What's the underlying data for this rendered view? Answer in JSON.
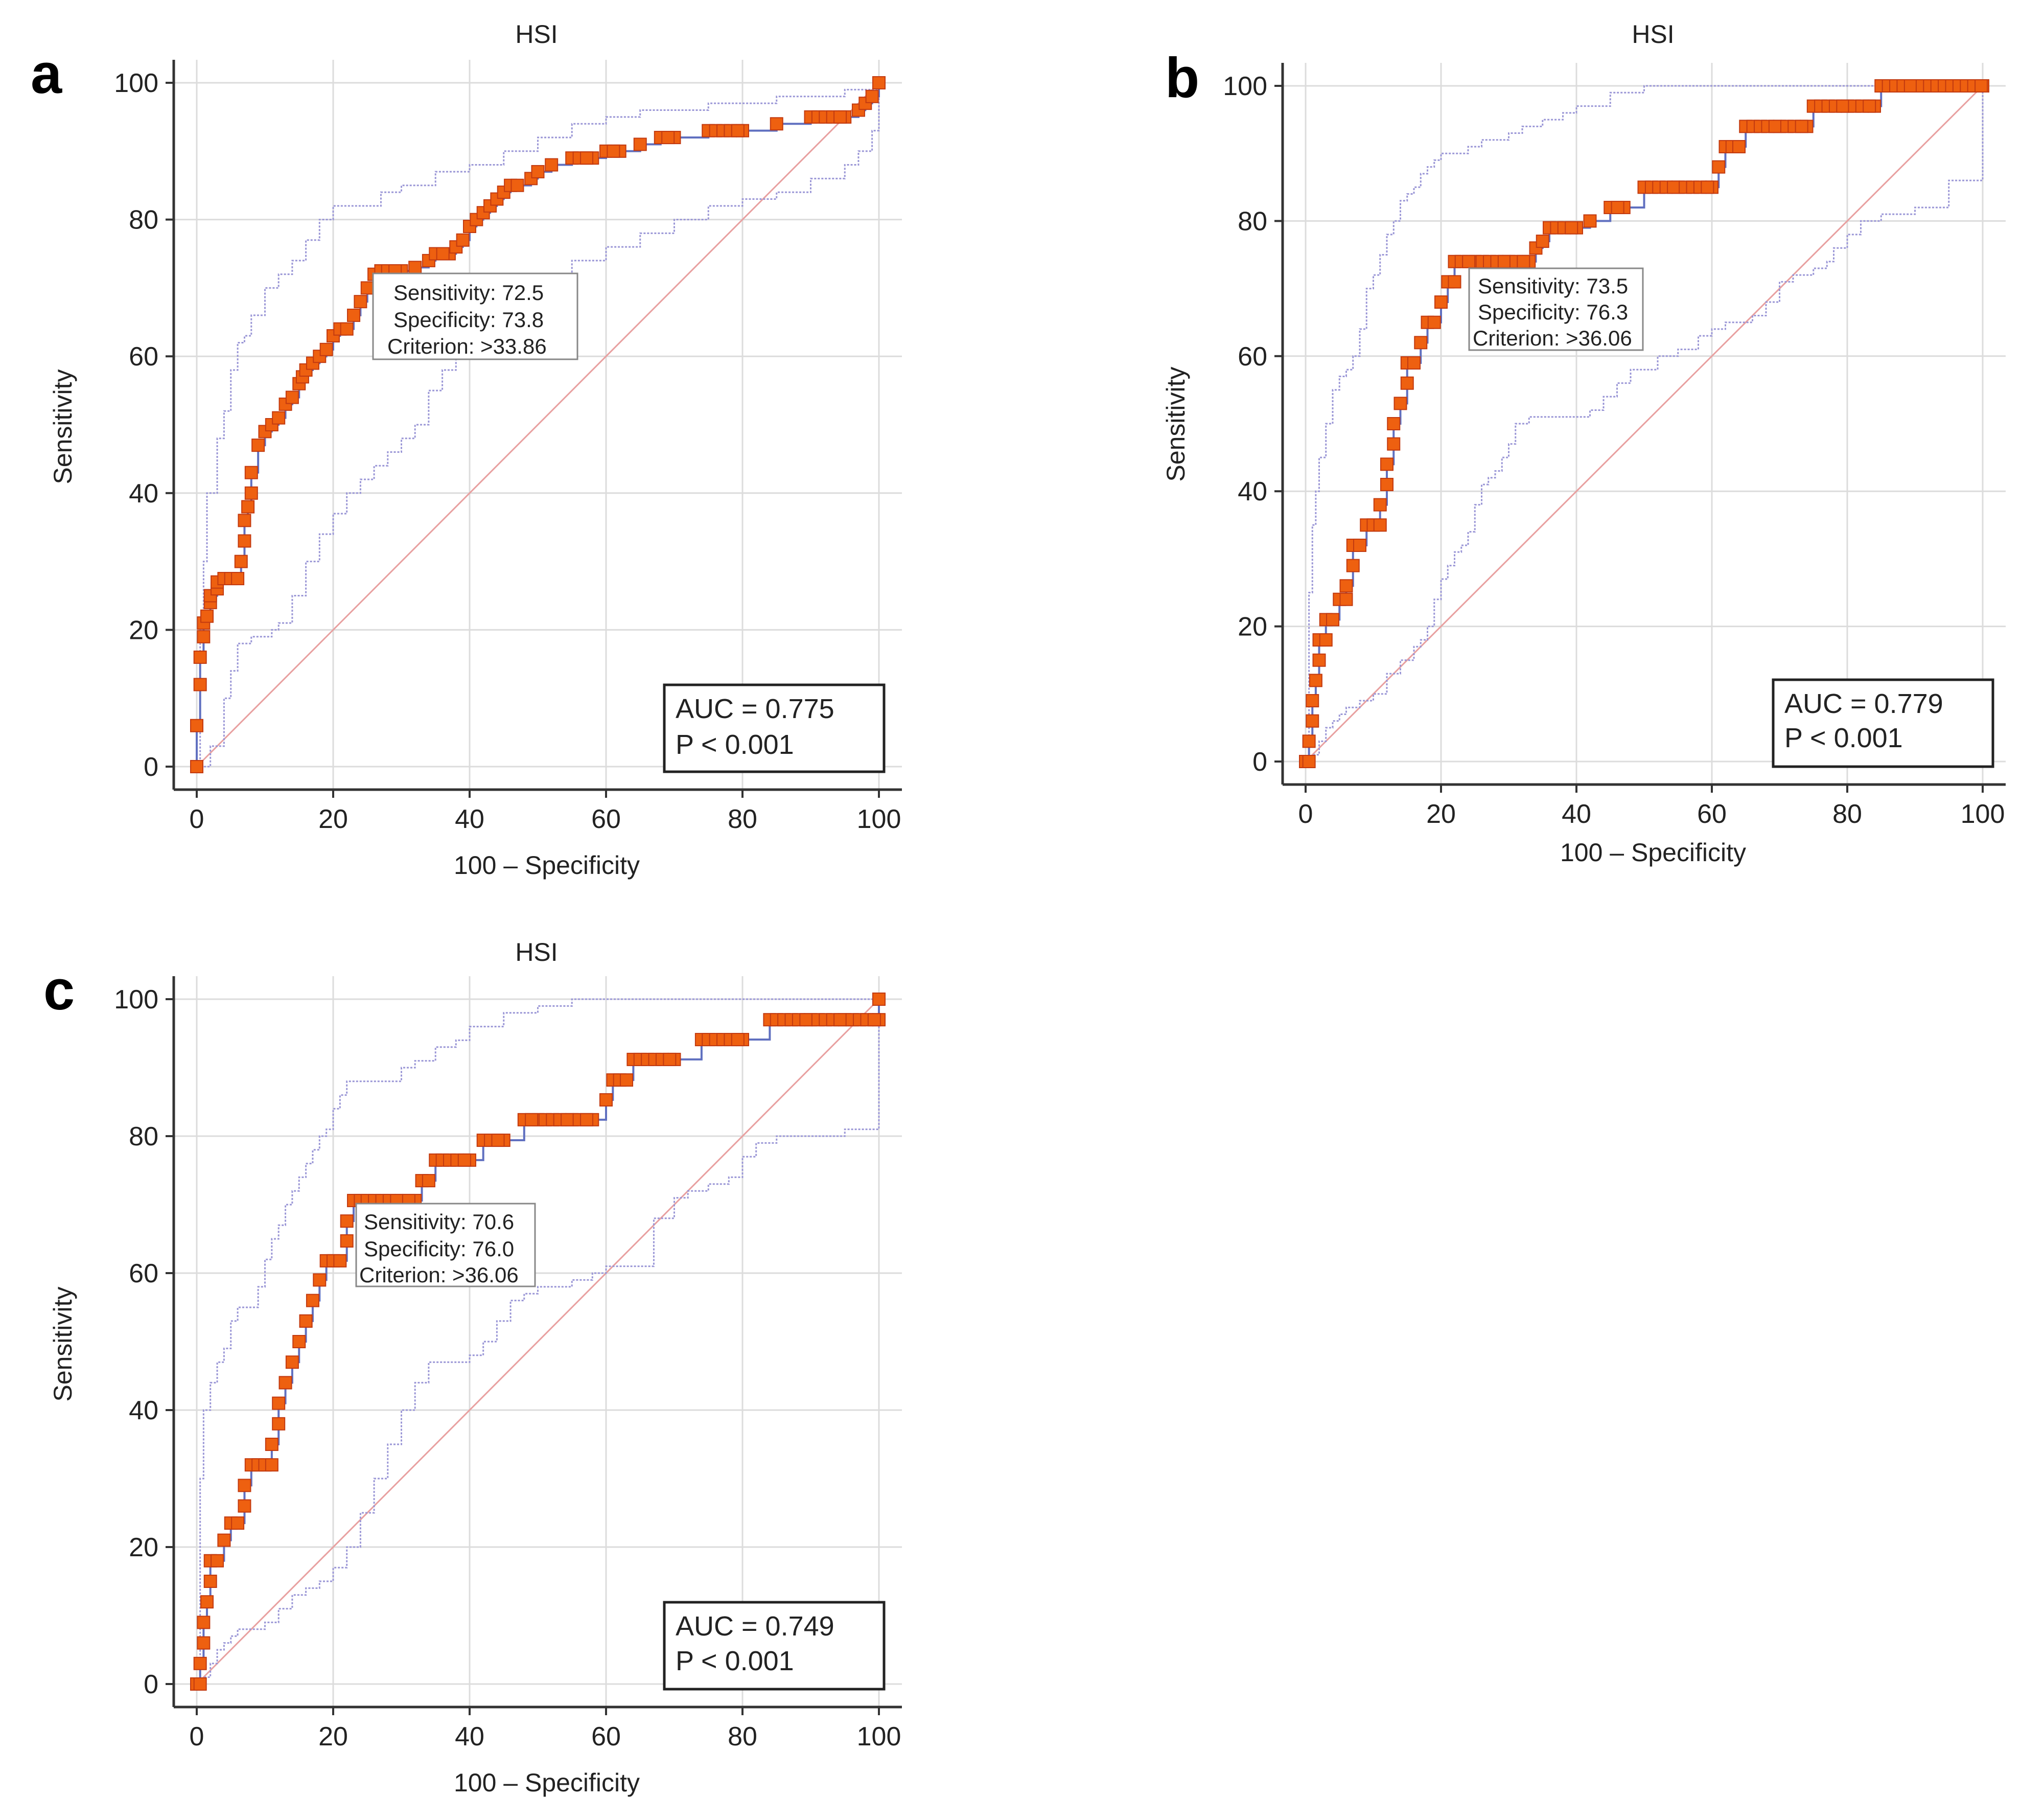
{
  "chart_data": [
    {
      "type": "line",
      "panel_label": "a",
      "title": "HSI",
      "xlabel": "100 – Specificity",
      "ylabel": "Sensitivity",
      "xlim": [
        0,
        100
      ],
      "ylim": [
        0,
        100
      ],
      "xticks": [
        "0",
        "20",
        "40",
        "60",
        "80",
        "100"
      ],
      "yticks": [
        "0",
        "20",
        "40",
        "60",
        "80",
        "100"
      ],
      "grid": true,
      "reference_line": {
        "name": "reference",
        "x": [
          0,
          100
        ],
        "y": [
          0,
          100
        ],
        "color": "#e8a0a0"
      },
      "series": [
        {
          "name": "ROC curve",
          "color": "#ee6010",
          "x": [
            0,
            0,
            0.5,
            0.5,
            1,
            1,
            1.5,
            2,
            2,
            3,
            3,
            4,
            5,
            6,
            6.5,
            7,
            7,
            7.5,
            8,
            8,
            9,
            10,
            11,
            12,
            13,
            14,
            15,
            15.5,
            16,
            17,
            18,
            19,
            20,
            21,
            22,
            23,
            24,
            25,
            26,
            27,
            28,
            30,
            32,
            34,
            35,
            37,
            38,
            39,
            40,
            41,
            42,
            43,
            44,
            45,
            46,
            47,
            49,
            50,
            52,
            55,
            58,
            60,
            62,
            65,
            68,
            70,
            75,
            80,
            85,
            90,
            95,
            97,
            98,
            99,
            100
          ],
          "y": [
            0,
            6,
            12,
            16,
            19,
            21,
            22,
            24,
            25,
            26,
            27,
            27.5,
            27.5,
            27.5,
            30,
            33,
            36,
            38,
            40,
            43,
            47,
            49,
            50,
            51,
            53,
            54,
            56,
            57,
            58,
            59,
            60,
            61,
            63,
            64,
            64,
            66,
            68,
            70,
            72,
            72.5,
            72.5,
            72.5,
            73,
            74,
            75,
            75,
            76,
            77,
            79,
            80,
            81,
            82,
            83,
            84,
            85,
            85,
            86,
            87,
            88,
            89,
            89,
            90,
            90,
            91,
            92,
            92,
            93,
            93,
            94,
            95,
            95,
            96,
            97,
            98,
            100
          ]
        },
        {
          "name": "CI upper",
          "color": "#9a96d6",
          "x": [
            0,
            0.5,
            1,
            1.5,
            2,
            3,
            4,
            5,
            6,
            7,
            8,
            10,
            12,
            14,
            16,
            18,
            20,
            22,
            25,
            27,
            30,
            35,
            40,
            45,
            50,
            55,
            60,
            65,
            70,
            75,
            80,
            85,
            90,
            95,
            100
          ],
          "y": [
            0,
            20,
            30,
            40,
            40,
            48,
            52,
            58,
            62,
            63,
            66,
            70,
            72,
            74,
            77,
            80,
            82,
            82,
            82,
            84,
            85,
            87,
            88,
            90,
            92,
            94,
            95,
            96,
            96,
            97,
            97,
            98,
            98,
            99,
            100
          ]
        },
        {
          "name": "CI lower",
          "color": "#9a96d6",
          "x": [
            0,
            2,
            4,
            5,
            6,
            8,
            10,
            11,
            12,
            14,
            16,
            18,
            20,
            22,
            24,
            26,
            28,
            30,
            32,
            34,
            36,
            38,
            40,
            42,
            45,
            48,
            50,
            55,
            60,
            65,
            70,
            75,
            80,
            85,
            90,
            95,
            97,
            99,
            100
          ],
          "y": [
            0,
            3,
            10,
            14,
            18,
            19,
            19,
            20,
            21,
            25,
            30,
            34,
            37,
            40,
            42,
            44,
            46,
            48,
            50,
            55,
            58,
            60,
            62,
            64,
            66,
            68,
            70,
            74,
            76,
            78,
            80,
            82,
            83,
            84,
            86,
            88,
            90,
            93,
            100
          ]
        }
      ],
      "annotation": {
        "sensitivity": "Sensitivity: 72.5",
        "specificity": "Specificity: 73.8",
        "criterion": "Criterion: >33.86"
      },
      "stats": {
        "auc": "AUC = 0.775",
        "p": "P < 0.001"
      }
    },
    {
      "type": "line",
      "panel_label": "b",
      "title": "HSI",
      "xlabel": "100 – Specificity",
      "ylabel": "Sensitivity",
      "xlim": [
        0,
        100
      ],
      "ylim": [
        0,
        100
      ],
      "xticks": [
        "0",
        "20",
        "40",
        "60",
        "80",
        "100"
      ],
      "yticks": [
        "0",
        "20",
        "40",
        "60",
        "80",
        "100"
      ],
      "grid": true,
      "reference_line": {
        "name": "reference",
        "x": [
          0,
          100
        ],
        "y": [
          0,
          100
        ],
        "color": "#e8a0a0"
      },
      "series": [
        {
          "name": "ROC curve",
          "color": "#ee6010",
          "x": [
            0,
            0.5,
            0.5,
            1,
            1,
            1.5,
            2,
            2,
            3,
            3,
            4,
            5,
            6,
            6,
            7,
            7,
            8,
            9,
            10,
            11,
            11,
            12,
            12,
            13,
            13,
            14,
            15,
            15,
            16,
            17,
            18,
            19,
            20,
            21,
            22,
            22,
            23,
            25,
            30,
            33,
            34,
            35,
            36,
            40,
            42,
            45,
            47,
            50,
            55,
            60,
            61,
            62,
            63,
            64,
            65,
            70,
            74,
            75,
            80,
            84,
            85,
            90,
            100
          ],
          "y": [
            0,
            0,
            3,
            6,
            9,
            12,
            15,
            18,
            18,
            21,
            21,
            24,
            24,
            26,
            29,
            32,
            32,
            35,
            35,
            35,
            38,
            41,
            44,
            47,
            50,
            53,
            56,
            59,
            59,
            62,
            65,
            65,
            68,
            71,
            71,
            74,
            74,
            74,
            74,
            74,
            76,
            77,
            79,
            79,
            80,
            82,
            82,
            85,
            85,
            85,
            88,
            91,
            91,
            91,
            94,
            94,
            94,
            97,
            97,
            97,
            100,
            100,
            100
          ]
        },
        {
          "name": "CI upper",
          "color": "#9a96d6",
          "x": [
            0,
            0.5,
            1,
            1.5,
            2,
            3,
            4,
            5,
            6,
            7,
            8,
            9,
            10,
            11,
            12,
            13,
            14,
            15,
            16,
            17,
            18,
            19,
            20,
            22,
            24,
            26,
            28,
            30,
            32,
            35,
            38,
            40,
            45,
            50,
            55,
            60,
            65,
            70,
            80,
            90,
            100
          ],
          "y": [
            0,
            25,
            35,
            40,
            45,
            50,
            55,
            57,
            58,
            60,
            64,
            70,
            72,
            75,
            78,
            80,
            83,
            84,
            85,
            87,
            88,
            89,
            90,
            90,
            91,
            92,
            92,
            93,
            94,
            95,
            96,
            97,
            99,
            100,
            100,
            100,
            100,
            100,
            100,
            100,
            100
          ]
        },
        {
          "name": "CI lower",
          "color": "#9a96d6",
          "x": [
            0,
            1,
            2,
            3,
            4,
            5,
            6,
            8,
            10,
            12,
            14,
            16,
            17,
            18,
            19,
            20,
            21,
            22,
            23,
            24,
            25,
            26,
            27,
            28,
            29,
            30,
            31,
            33,
            35,
            37,
            40,
            42,
            44,
            46,
            48,
            50,
            52,
            55,
            58,
            60,
            62,
            65,
            66,
            68,
            70,
            72,
            75,
            77,
            78,
            80,
            82,
            85,
            90,
            95,
            100,
            100
          ],
          "y": [
            0,
            1,
            3,
            5,
            6,
            7,
            8,
            9,
            10,
            13,
            15,
            17,
            18,
            20,
            24,
            27,
            29,
            31,
            32,
            34,
            38,
            41,
            42,
            43,
            45,
            47,
            50,
            51,
            51,
            51,
            51,
            52,
            54,
            56,
            58,
            58,
            60,
            61,
            63,
            64,
            65,
            65,
            66,
            68,
            71,
            72,
            73,
            74,
            76,
            78,
            80,
            81,
            82,
            86,
            86,
            100
          ]
        }
      ],
      "annotation": {
        "sensitivity": "Sensitivity: 73.5",
        "specificity": "Specificity: 76.3",
        "criterion": "Criterion: >36.06"
      },
      "stats": {
        "auc": "AUC = 0.779",
        "p": "P < 0.001"
      }
    },
    {
      "type": "line",
      "panel_label": "c",
      "title": "HSI",
      "xlabel": "100 – Specificity",
      "ylabel": "Sensitivity",
      "xlim": [
        0,
        100
      ],
      "ylim": [
        0,
        100
      ],
      "xticks": [
        "0",
        "20",
        "40",
        "60",
        "80",
        "100"
      ],
      "yticks": [
        "0",
        "20",
        "40",
        "60",
        "80",
        "100"
      ],
      "grid": true,
      "reference_line": {
        "name": "reference",
        "x": [
          0,
          100
        ],
        "y": [
          0,
          100
        ],
        "color": "#e8a0a0"
      },
      "series": [
        {
          "name": "ROC curve",
          "color": "#ee6010",
          "x": [
            0,
            0.5,
            0.5,
            1,
            1,
            1.5,
            2,
            2,
            3,
            4,
            5,
            6,
            7,
            7,
            8,
            9,
            10,
            11,
            11,
            12,
            12,
            13,
            13,
            14,
            15,
            16,
            16,
            17,
            18,
            19,
            20,
            21,
            22,
            22,
            23,
            24,
            25,
            30,
            32,
            33,
            34,
            35,
            36,
            40,
            42,
            45,
            48,
            50,
            55,
            58,
            60,
            61,
            62,
            63,
            64,
            65,
            70,
            74,
            75,
            80,
            84,
            85,
            90,
            95,
            100,
            100
          ],
          "y": [
            0,
            0,
            3,
            6,
            9,
            12,
            15,
            18,
            18,
            21,
            23.5,
            23.5,
            26,
            29,
            32,
            32,
            32,
            32,
            35,
            38,
            41,
            44,
            44,
            47,
            50,
            53,
            53,
            56,
            59,
            61.8,
            61.8,
            61.8,
            64.7,
            67.6,
            70.6,
            70.6,
            70.6,
            70.6,
            70.6,
            73.5,
            73.5,
            76.5,
            76.5,
            76.5,
            79.4,
            79.4,
            82.4,
            82.4,
            82.4,
            82.4,
            85.3,
            88.2,
            88.2,
            88.2,
            91.2,
            91.2,
            91.2,
            94.1,
            94.1,
            94.1,
            97,
            97,
            97,
            97,
            97,
            100
          ]
        },
        {
          "name": "CI upper",
          "color": "#9a96d6",
          "x": [
            0,
            0.5,
            1,
            2,
            3,
            4,
            5,
            6,
            7,
            8,
            9,
            10,
            11,
            12,
            13,
            14,
            15,
            16,
            17,
            18,
            19,
            20,
            21,
            22,
            24,
            26,
            28,
            30,
            32,
            35,
            38,
            40,
            45,
            50,
            55,
            60,
            65,
            70,
            80,
            90,
            100
          ],
          "y": [
            0,
            30,
            40,
            44,
            47,
            49,
            53,
            55,
            55,
            55,
            58,
            62,
            65,
            67,
            70,
            72,
            74,
            76,
            78,
            80,
            81,
            84,
            86,
            88,
            88,
            88,
            88,
            90,
            91,
            93,
            94,
            96,
            98,
            99,
            100,
            100,
            100,
            100,
            100,
            100,
            100
          ]
        },
        {
          "name": "CI lower",
          "color": "#9a96d6",
          "x": [
            0,
            1,
            2,
            3,
            4,
            5,
            6,
            8,
            10,
            12,
            14,
            16,
            18,
            20,
            22,
            24,
            26,
            28,
            30,
            32,
            34,
            36,
            38,
            40,
            42,
            44,
            46,
            48,
            50,
            52,
            55,
            58,
            60,
            62,
            65,
            67,
            70,
            72,
            75,
            78,
            80,
            82,
            85,
            90,
            95,
            100,
            100
          ],
          "y": [
            0,
            1,
            3,
            5,
            6,
            7,
            8,
            8,
            9,
            11,
            13,
            14,
            15,
            17,
            20,
            25,
            30,
            35,
            40,
            44,
            47,
            47,
            47,
            48,
            50,
            53,
            56,
            57,
            58,
            58,
            59,
            60,
            61,
            61,
            61,
            68,
            71,
            72,
            73,
            74,
            77,
            79,
            80,
            80,
            81,
            81,
            100
          ]
        }
      ],
      "annotation": {
        "sensitivity": "Sensitivity: 70.6",
        "specificity": "Specificity: 76.0",
        "criterion": "Criterion: >36.06"
      },
      "stats": {
        "auc": "AUC = 0.749",
        "p": "P < 0.001"
      }
    }
  ]
}
